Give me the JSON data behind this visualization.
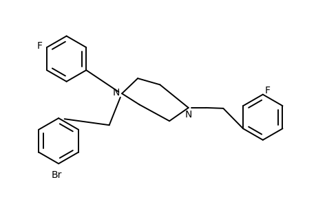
{
  "bg_color": "#ffffff",
  "line_color": "#000000",
  "line_width": 1.4,
  "font_size": 10,
  "figsize": [
    4.6,
    3.0
  ],
  "dpi": 100,
  "xlim": [
    0,
    10
  ],
  "ylim": [
    0,
    6.5
  ]
}
